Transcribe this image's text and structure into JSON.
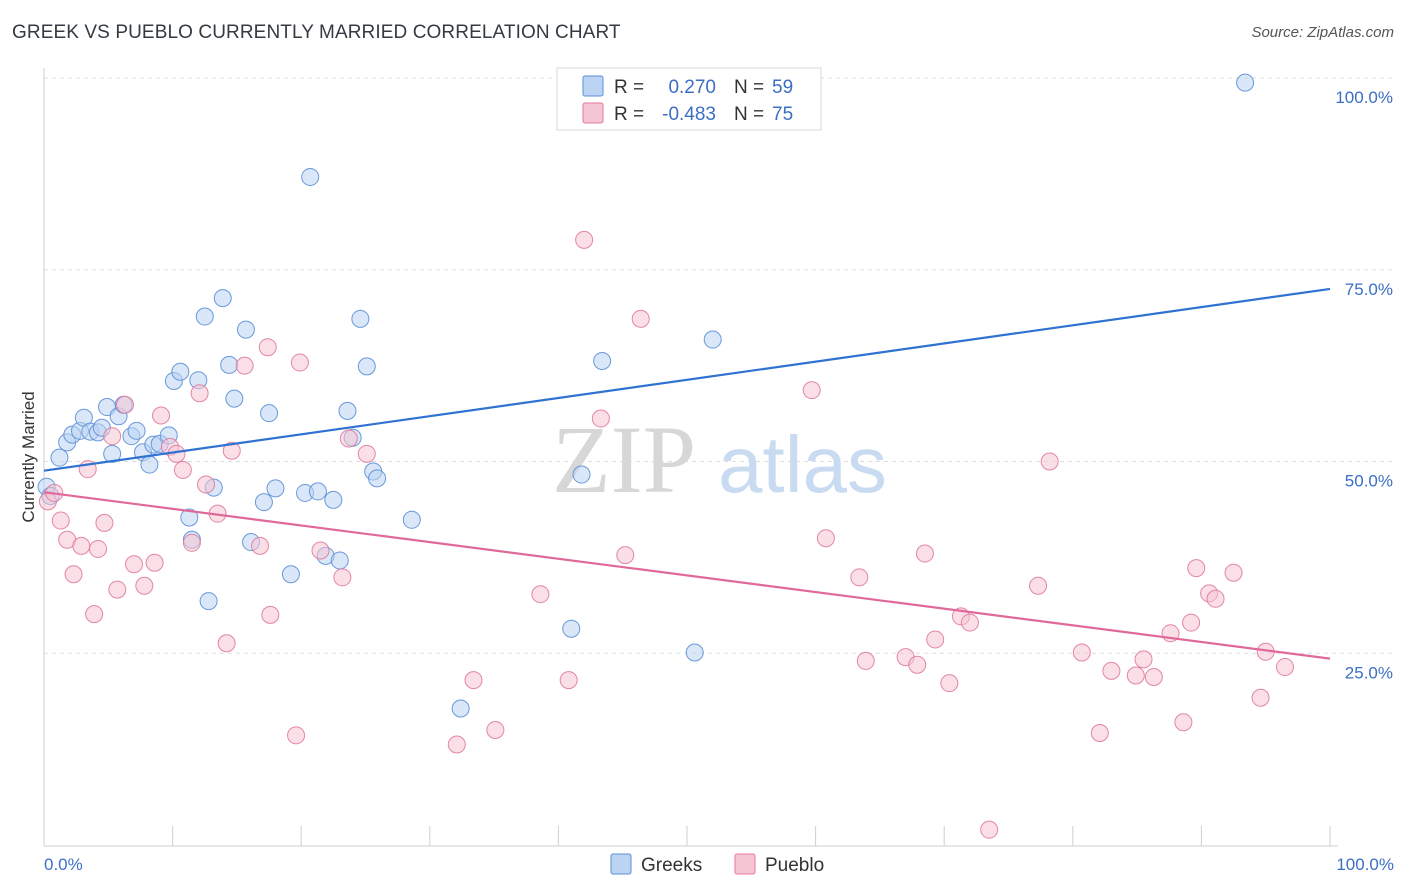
{
  "header": {
    "title": "GREEK VS PUEBLO CURRENTLY MARRIED CORRELATION CHART",
    "source": "Source: ZipAtlas.com"
  },
  "watermark": {
    "zip": "ZIP",
    "atlas": "atlas"
  },
  "legend_top": {
    "rows": [
      {
        "r_label": "R =",
        "r_value": "0.270",
        "n_label": "N =",
        "n_value": "59"
      },
      {
        "r_label": "R =",
        "r_value": "-0.483",
        "n_label": "N =",
        "n_value": "75"
      }
    ]
  },
  "chart_data": {
    "type": "scatter",
    "title": "GREEK VS PUEBLO CURRENTLY MARRIED CORRELATION CHART",
    "xlabel": "",
    "ylabel": "Currently Married",
    "xlim": [
      0,
      100
    ],
    "ylim": [
      0,
      100
    ],
    "x_tick_labels": [
      "0.0%",
      "100.0%"
    ],
    "y_ticks": [
      25,
      50,
      75,
      100
    ],
    "y_tick_labels": [
      "25.0%",
      "50.0%",
      "75.0%",
      "100.0%"
    ],
    "grid": "horizontal dashed",
    "legend_placement": "bottom-center",
    "series": [
      {
        "name": "Greeks",
        "color": "#5b8fd6",
        "fill": "#bcd4f3",
        "r": 0.27,
        "n": 59,
        "trend": [
          [
            0,
            48.8
          ],
          [
            100,
            72.5
          ]
        ],
        "points": [
          [
            0.2,
            46.7
          ],
          [
            0.5,
            45.5
          ],
          [
            1.2,
            50.5
          ],
          [
            1.8,
            52.5
          ],
          [
            2.2,
            53.5
          ],
          [
            2.8,
            54.0
          ],
          [
            3.1,
            55.7
          ],
          [
            3.6,
            53.9
          ],
          [
            4.2,
            53.8
          ],
          [
            4.5,
            54.4
          ],
          [
            4.9,
            57.1
          ],
          [
            5.3,
            51.0
          ],
          [
            5.8,
            55.9
          ],
          [
            6.2,
            57.4
          ],
          [
            6.8,
            53.3
          ],
          [
            7.2,
            54.0
          ],
          [
            7.7,
            51.2
          ],
          [
            8.2,
            49.6
          ],
          [
            8.5,
            52.2
          ],
          [
            9.0,
            52.3
          ],
          [
            9.7,
            53.4
          ],
          [
            10.1,
            60.5
          ],
          [
            10.6,
            61.7
          ],
          [
            11.3,
            42.7
          ],
          [
            11.5,
            39.8
          ],
          [
            12.0,
            60.6
          ],
          [
            12.5,
            68.9
          ],
          [
            12.8,
            31.8
          ],
          [
            13.2,
            46.6
          ],
          [
            13.9,
            71.3
          ],
          [
            14.4,
            62.6
          ],
          [
            14.8,
            58.2
          ],
          [
            15.7,
            67.2
          ],
          [
            16.1,
            39.5
          ],
          [
            17.1,
            44.7
          ],
          [
            17.5,
            56.3
          ],
          [
            18.0,
            46.5
          ],
          [
            19.2,
            35.3
          ],
          [
            20.3,
            45.9
          ],
          [
            20.7,
            87.1
          ],
          [
            21.3,
            46.1
          ],
          [
            21.9,
            37.7
          ],
          [
            22.5,
            45.0
          ],
          [
            23.0,
            37.1
          ],
          [
            23.6,
            56.6
          ],
          [
            24.0,
            53.1
          ],
          [
            24.6,
            68.6
          ],
          [
            25.1,
            62.4
          ],
          [
            25.6,
            48.7
          ],
          [
            25.9,
            47.8
          ],
          [
            28.6,
            42.4
          ],
          [
            32.4,
            17.8
          ],
          [
            41.0,
            28.2
          ],
          [
            41.8,
            48.3
          ],
          [
            43.4,
            63.1
          ],
          [
            50.6,
            25.1
          ],
          [
            52.0,
            65.9
          ],
          [
            56.4,
            100.0
          ],
          [
            93.4,
            99.4
          ]
        ]
      },
      {
        "name": "Pueblo",
        "color": "#e07a9c",
        "fill": "#f6c5d4",
        "r": -0.483,
        "n": 75,
        "trend": [
          [
            0,
            46.0
          ],
          [
            100,
            24.3
          ]
        ],
        "points": [
          [
            0.3,
            44.8
          ],
          [
            0.8,
            45.9
          ],
          [
            1.3,
            42.3
          ],
          [
            1.8,
            39.8
          ],
          [
            2.3,
            35.3
          ],
          [
            2.9,
            39.0
          ],
          [
            3.4,
            49.0
          ],
          [
            3.9,
            30.1
          ],
          [
            4.2,
            38.6
          ],
          [
            4.7,
            42.0
          ],
          [
            5.3,
            53.3
          ],
          [
            5.7,
            33.3
          ],
          [
            6.3,
            57.4
          ],
          [
            7.0,
            36.6
          ],
          [
            7.8,
            33.8
          ],
          [
            8.6,
            36.8
          ],
          [
            9.1,
            56.0
          ],
          [
            9.8,
            51.9
          ],
          [
            10.3,
            51.0
          ],
          [
            10.8,
            48.9
          ],
          [
            11.5,
            39.4
          ],
          [
            12.1,
            58.9
          ],
          [
            12.6,
            47.0
          ],
          [
            13.5,
            43.2
          ],
          [
            14.2,
            26.3
          ],
          [
            14.6,
            51.4
          ],
          [
            15.6,
            62.5
          ],
          [
            16.8,
            39.0
          ],
          [
            17.4,
            64.9
          ],
          [
            17.6,
            30.0
          ],
          [
            19.9,
            62.9
          ],
          [
            19.6,
            14.3
          ],
          [
            21.5,
            38.4
          ],
          [
            23.2,
            34.9
          ],
          [
            23.7,
            53.0
          ],
          [
            25.1,
            51.0
          ],
          [
            32.1,
            13.1
          ],
          [
            33.4,
            21.5
          ],
          [
            35.1,
            15.0
          ],
          [
            38.6,
            32.7
          ],
          [
            40.8,
            21.5
          ],
          [
            42.0,
            78.9
          ],
          [
            43.3,
            55.6
          ],
          [
            45.2,
            37.8
          ],
          [
            46.4,
            68.6
          ],
          [
            59.7,
            59.3
          ],
          [
            60.8,
            40.0
          ],
          [
            63.4,
            34.9
          ],
          [
            63.9,
            24.0
          ],
          [
            67.0,
            24.5
          ],
          [
            67.9,
            23.5
          ],
          [
            68.5,
            38.0
          ],
          [
            69.3,
            26.8
          ],
          [
            70.4,
            21.1
          ],
          [
            71.3,
            29.8
          ],
          [
            72.0,
            29.0
          ],
          [
            73.5,
            2.0
          ],
          [
            77.3,
            33.8
          ],
          [
            78.2,
            50.0
          ],
          [
            80.7,
            25.1
          ],
          [
            82.1,
            14.6
          ],
          [
            83.0,
            22.7
          ],
          [
            84.9,
            22.1
          ],
          [
            85.5,
            24.2
          ],
          [
            86.3,
            21.9
          ],
          [
            87.6,
            27.6
          ],
          [
            88.6,
            16.0
          ],
          [
            89.2,
            29.0
          ],
          [
            89.6,
            36.1
          ],
          [
            90.6,
            32.8
          ],
          [
            91.1,
            32.1
          ],
          [
            92.5,
            35.5
          ],
          [
            94.6,
            19.2
          ],
          [
            95.0,
            25.2
          ],
          [
            96.5,
            23.2
          ]
        ]
      }
    ]
  },
  "legend_bottom": {
    "items": [
      {
        "label": "Greeks"
      },
      {
        "label": "Pueblo"
      }
    ]
  }
}
